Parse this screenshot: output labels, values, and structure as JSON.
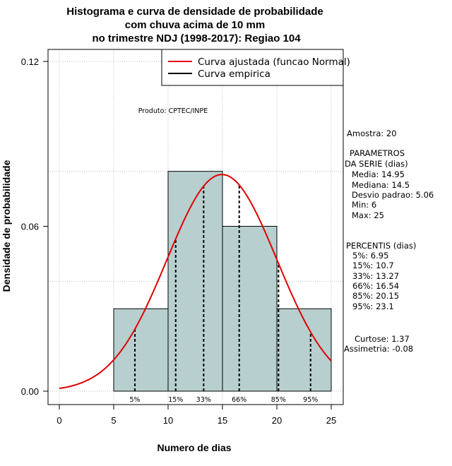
{
  "chart_data": {
    "type": "bar",
    "title": [
      "Histograma e curva de densidade de probabilidade",
      "com chuva acima de 10 mm",
      "no trimestre NDJ (1998-2017): Regiao 104"
    ],
    "xlabel": "Numero de dias",
    "ylabel": "Densidade de probabilidade",
    "xlim": [
      0,
      25
    ],
    "ylim": [
      0,
      0.12
    ],
    "x_ticks": [
      0,
      5,
      10,
      15,
      20,
      25
    ],
    "y_ticks": [
      0.0,
      0.06,
      0.12
    ],
    "y_tick_labels": [
      "0.00",
      "0.06",
      "0.12"
    ],
    "bins": [
      {
        "from": 5,
        "to": 10,
        "density": 0.03
      },
      {
        "from": 10,
        "to": 15,
        "density": 0.08
      },
      {
        "from": 15,
        "to": 20,
        "density": 0.06
      },
      {
        "from": 20,
        "to": 25,
        "density": 0.03
      }
    ],
    "normal_fit": {
      "mean": 14.95,
      "sd": 5.06,
      "x_from": 0,
      "x_to": 25,
      "color": "#e00000"
    },
    "percentile_lines": [
      {
        "label": "5%",
        "x": 6.95
      },
      {
        "label": "15%",
        "x": 10.7
      },
      {
        "label": "33%",
        "x": 13.27
      },
      {
        "label": "66%",
        "x": 16.54
      },
      {
        "label": "85%",
        "x": 20.15
      },
      {
        "label": "95%",
        "x": 23.1
      }
    ],
    "legend": [
      "Curva ajustada (funcao Normal)",
      "Curva empirica"
    ],
    "legend_position": "top-right",
    "bar_color": "#b8cfcf",
    "grid": true
  },
  "product_label": "Produto: CPTEC/INPE",
  "side_text": {
    "amostra": "Amostra: 20",
    "param_title_1": "PARAMETROS",
    "param_title_2": "DA SERIE (dias)",
    "media": "Media: 14.95",
    "mediana": "Mediana: 14.5",
    "desvio": "Desvio padrao: 5.06",
    "min": "Min: 6",
    "max": "Max: 25",
    "perc_title": "PERCENTIS (dias)",
    "p5": "5%: 6.95",
    "p15": "15%: 10.7",
    "p33": "33%: 13.27",
    "p66": "66%: 16.54",
    "p85": "85%: 20.15",
    "p95": "95%: 23.1",
    "curtose": "Curtose: 1.37",
    "assimetria": "Assimetria: -0.08"
  }
}
